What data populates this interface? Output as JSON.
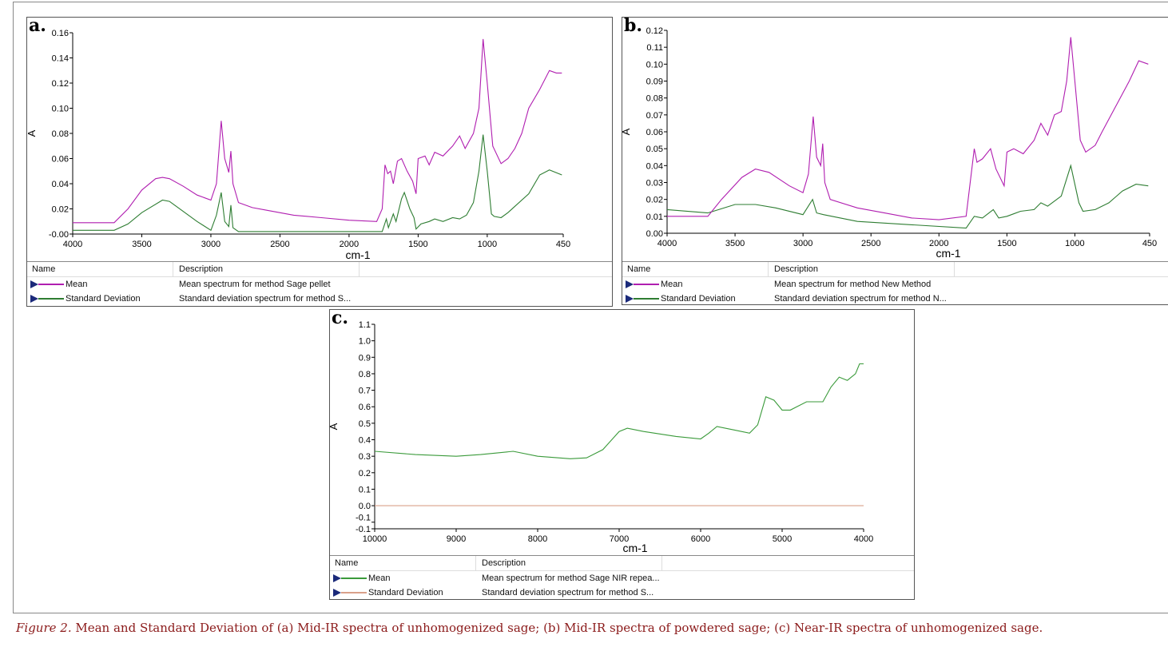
{
  "caption": {
    "label": "Figure 2.",
    "text": " Mean and Standard Deviation of (a) Mid-IR spectra of unhomogenized sage; (b) Mid-IR spectra of powdered sage; (c) Near-IR spectra of unhomogenized sage."
  },
  "legend_headers": {
    "name": "Name",
    "description": "Description"
  },
  "chart_data": [
    {
      "id": "a",
      "panel_label": "a.",
      "type": "line",
      "xlabel": "cm-1",
      "ylabel": "A",
      "xlim": [
        4000,
        450
      ],
      "ylim": [
        0,
        0.16
      ],
      "xticks": [
        4000,
        3500,
        3000,
        2500,
        2000,
        1500,
        1000,
        450
      ],
      "yticks": [
        {
          "v": 0.16,
          "t": "0.16"
        },
        {
          "v": 0.14,
          "t": "0.14"
        },
        {
          "v": 0.12,
          "t": "0.12"
        },
        {
          "v": 0.1,
          "t": "0.10"
        },
        {
          "v": 0.08,
          "t": "0.08"
        },
        {
          "v": 0.06,
          "t": "0.06"
        },
        {
          "v": 0.04,
          "t": "0.04"
        },
        {
          "v": 0.02,
          "t": "0.02"
        },
        {
          "v": 0,
          "t": "-0.00"
        }
      ],
      "series": [
        {
          "name": "Mean",
          "description": "Mean spectrum for method Sage pellet",
          "color": "#b01eb0",
          "x": [
            4000,
            3700,
            3600,
            3500,
            3400,
            3350,
            3300,
            3200,
            3100,
            3000,
            2960,
            2925,
            2900,
            2870,
            2855,
            2840,
            2800,
            2700,
            2600,
            2400,
            2200,
            2000,
            1800,
            1760,
            1740,
            1720,
            1700,
            1680,
            1650,
            1620,
            1580,
            1540,
            1515,
            1500,
            1450,
            1420,
            1380,
            1320,
            1250,
            1200,
            1160,
            1100,
            1060,
            1030,
            1000,
            960,
            900,
            850,
            800,
            750,
            700,
            620,
            550,
            500,
            460
          ],
          "y": [
            0.009,
            0.009,
            0.02,
            0.035,
            0.044,
            0.045,
            0.044,
            0.038,
            0.031,
            0.027,
            0.04,
            0.09,
            0.06,
            0.049,
            0.066,
            0.04,
            0.025,
            0.021,
            0.019,
            0.015,
            0.013,
            0.011,
            0.01,
            0.02,
            0.055,
            0.048,
            0.05,
            0.04,
            0.058,
            0.06,
            0.05,
            0.042,
            0.032,
            0.06,
            0.062,
            0.055,
            0.065,
            0.062,
            0.07,
            0.078,
            0.068,
            0.08,
            0.1,
            0.155,
            0.12,
            0.07,
            0.056,
            0.06,
            0.068,
            0.08,
            0.1,
            0.115,
            0.13,
            0.128,
            0.128
          ]
        },
        {
          "name": "Standard Deviation",
          "description": "Standard deviation spectrum for method S...",
          "color": "#2e7d32",
          "x": [
            4000,
            3700,
            3600,
            3500,
            3350,
            3300,
            3200,
            3100,
            3000,
            2960,
            2925,
            2900,
            2870,
            2855,
            2840,
            2800,
            2500,
            2000,
            1760,
            1730,
            1715,
            1680,
            1660,
            1620,
            1600,
            1560,
            1530,
            1515,
            1480,
            1420,
            1380,
            1320,
            1250,
            1200,
            1150,
            1100,
            1060,
            1030,
            1000,
            970,
            950,
            900,
            850,
            800,
            700,
            620,
            550,
            460
          ],
          "y": [
            0.003,
            0.003,
            0.008,
            0.017,
            0.027,
            0.026,
            0.018,
            0.01,
            0.003,
            0.015,
            0.033,
            0.01,
            0.006,
            0.023,
            0.005,
            0.002,
            0.002,
            0.002,
            0.002,
            0.012,
            0.005,
            0.016,
            0.01,
            0.028,
            0.033,
            0.02,
            0.013,
            0.004,
            0.008,
            0.01,
            0.012,
            0.01,
            0.013,
            0.012,
            0.015,
            0.025,
            0.05,
            0.079,
            0.05,
            0.016,
            0.014,
            0.013,
            0.017,
            0.022,
            0.032,
            0.047,
            0.051,
            0.047
          ]
        }
      ]
    },
    {
      "id": "b",
      "panel_label": "b.",
      "type": "line",
      "xlabel": "cm-1",
      "ylabel": "A",
      "xlim": [
        4000,
        450
      ],
      "ylim": [
        0,
        0.12
      ],
      "xticks": [
        4000,
        3500,
        3000,
        2500,
        2000,
        1500,
        1000,
        450
      ],
      "yticks": [
        {
          "v": 0.12,
          "t": "0.12"
        },
        {
          "v": 0.11,
          "t": "0.11"
        },
        {
          "v": 0.1,
          "t": "0.10"
        },
        {
          "v": 0.09,
          "t": "0.09"
        },
        {
          "v": 0.08,
          "t": "0.08"
        },
        {
          "v": 0.07,
          "t": "0.07"
        },
        {
          "v": 0.06,
          "t": "0.06"
        },
        {
          "v": 0.05,
          "t": "0.05"
        },
        {
          "v": 0.04,
          "t": "0.04"
        },
        {
          "v": 0.03,
          "t": "0.03"
        },
        {
          "v": 0.02,
          "t": "0.02"
        },
        {
          "v": 0.01,
          "t": "0.01"
        },
        {
          "v": 0,
          "t": "0.00"
        }
      ],
      "series": [
        {
          "name": "Mean",
          "description": "Mean spectrum for method New Method",
          "color": "#b01eb0",
          "x": [
            4000,
            3700,
            3600,
            3450,
            3350,
            3250,
            3100,
            3000,
            2960,
            2925,
            2900,
            2870,
            2855,
            2840,
            2800,
            2600,
            2400,
            2200,
            2000,
            1800,
            1740,
            1720,
            1680,
            1620,
            1580,
            1520,
            1500,
            1450,
            1380,
            1300,
            1250,
            1200,
            1150,
            1100,
            1060,
            1030,
            1000,
            960,
            920,
            850,
            800,
            700,
            600,
            530,
            460
          ],
          "y": [
            0.01,
            0.01,
            0.02,
            0.033,
            0.038,
            0.036,
            0.028,
            0.024,
            0.035,
            0.069,
            0.045,
            0.04,
            0.053,
            0.03,
            0.02,
            0.015,
            0.012,
            0.009,
            0.008,
            0.01,
            0.05,
            0.042,
            0.044,
            0.05,
            0.038,
            0.028,
            0.048,
            0.05,
            0.047,
            0.055,
            0.065,
            0.058,
            0.07,
            0.072,
            0.09,
            0.116,
            0.09,
            0.055,
            0.048,
            0.052,
            0.06,
            0.075,
            0.09,
            0.102,
            0.1
          ]
        },
        {
          "name": "Standard Deviation",
          "description": "Standard deviation spectrum for method N...",
          "color": "#2e7d32",
          "x": [
            4000,
            3700,
            3500,
            3350,
            3200,
            3000,
            2930,
            2900,
            2850,
            2600,
            2200,
            1800,
            1740,
            1680,
            1600,
            1560,
            1500,
            1400,
            1300,
            1250,
            1200,
            1100,
            1030,
            970,
            940,
            850,
            750,
            650,
            550,
            460
          ],
          "y": [
            0.014,
            0.012,
            0.017,
            0.017,
            0.015,
            0.011,
            0.02,
            0.012,
            0.011,
            0.007,
            0.005,
            0.003,
            0.01,
            0.009,
            0.014,
            0.009,
            0.01,
            0.013,
            0.014,
            0.018,
            0.016,
            0.022,
            0.04,
            0.018,
            0.013,
            0.014,
            0.018,
            0.025,
            0.029,
            0.028
          ]
        }
      ]
    },
    {
      "id": "c",
      "panel_label": "c.",
      "type": "line",
      "xlabel": "cm-1",
      "ylabel": "A",
      "xlim": [
        10000,
        4000
      ],
      "ylim": [
        -0.14,
        1.1
      ],
      "xticks": [
        10000,
        9000,
        8000,
        7000,
        6000,
        5000,
        4000
      ],
      "yticks": [
        {
          "v": 1.1,
          "t": "1.1"
        },
        {
          "v": 1.0,
          "t": "1.0"
        },
        {
          "v": 0.9,
          "t": "0.9"
        },
        {
          "v": 0.8,
          "t": "0.8"
        },
        {
          "v": 0.7,
          "t": "0.7"
        },
        {
          "v": 0.6,
          "t": "0.6"
        },
        {
          "v": 0.5,
          "t": "0.5"
        },
        {
          "v": 0.4,
          "t": "0.4"
        },
        {
          "v": 0.3,
          "t": "0.3"
        },
        {
          "v": 0.2,
          "t": "0.2"
        },
        {
          "v": 0.1,
          "t": "0.1"
        },
        {
          "v": 0.0,
          "t": "0.0"
        },
        {
          "v": -0.1,
          "t": "-0.1"
        },
        {
          "v": -0.14,
          "t": "-0.1"
        }
      ],
      "series": [
        {
          "name": "Mean",
          "description": "Mean spectrum for method Sage NIR repea...",
          "color": "#3a9a3a",
          "x": [
            10000,
            9500,
            9000,
            8700,
            8300,
            8000,
            7600,
            7400,
            7200,
            7000,
            6900,
            6700,
            6300,
            6000,
            5900,
            5800,
            5600,
            5400,
            5300,
            5200,
            5100,
            5000,
            4900,
            4700,
            4500,
            4400,
            4300,
            4200,
            4100,
            4050,
            4000
          ],
          "y": [
            0.33,
            0.31,
            0.3,
            0.31,
            0.33,
            0.3,
            0.285,
            0.29,
            0.34,
            0.45,
            0.47,
            0.45,
            0.42,
            0.405,
            0.44,
            0.48,
            0.46,
            0.44,
            0.49,
            0.66,
            0.64,
            0.58,
            0.58,
            0.63,
            0.63,
            0.72,
            0.78,
            0.76,
            0.8,
            0.86,
            0.86
          ]
        },
        {
          "name": "Standard Deviation",
          "description": "Standard deviation spectrum for method S...",
          "color": "#d9a08a",
          "x": [
            10000,
            4000
          ],
          "y": [
            0,
            0
          ]
        }
      ]
    }
  ]
}
